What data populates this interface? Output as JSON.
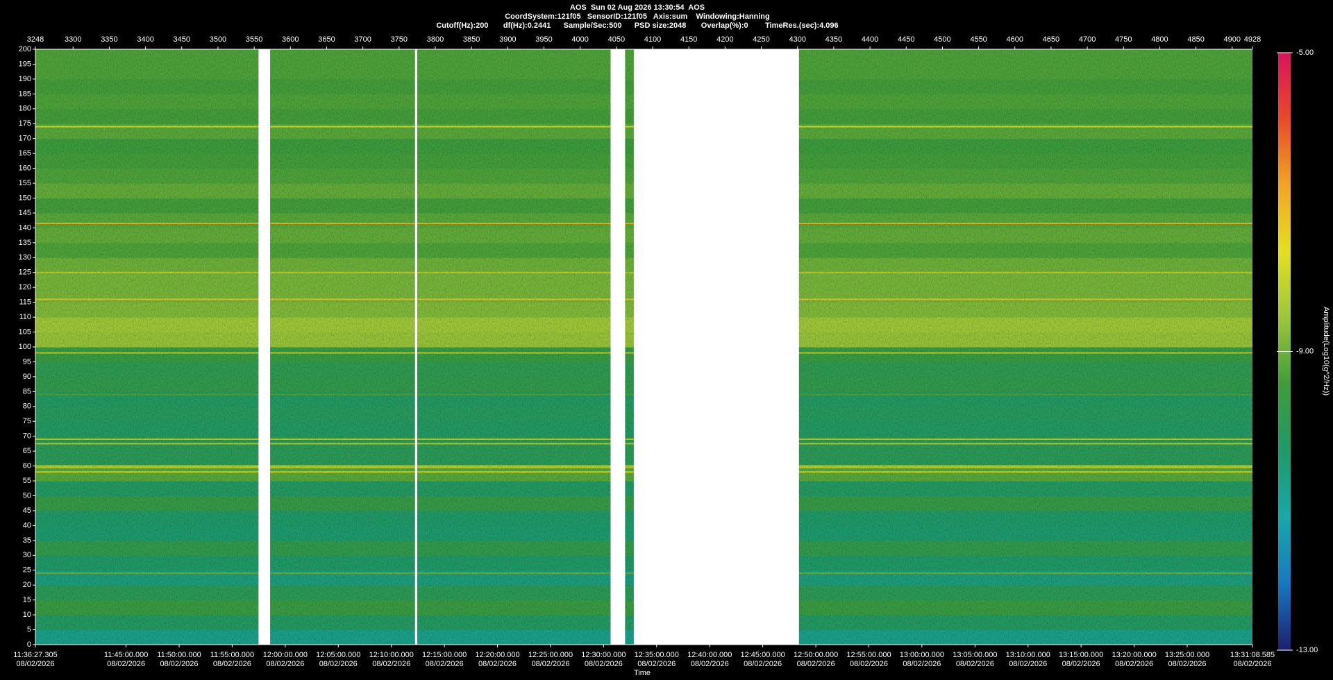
{
  "chart_data": {
    "type": "spectrogram",
    "title": "AOS  Sun 02 Aug 2026 13:30:54  AOS",
    "subtitle": "CoordSystem:121f05   SensorID:121f05   Axis:sum    Windowing:Hanning",
    "settings_line": "Cutoff(Hz):200       df(Hz):0.2441      Sample/Sec:500      PSD size:2048       Overlap(%):0        TimeRes.(sec):4.096",
    "xlabel": "Time",
    "colorbar_label": "Amplitude(Log10(g^2/Hz))",
    "xlim": [
      3248,
      4928
    ],
    "top_xticks": [
      3248,
      3300,
      3350,
      3400,
      3450,
      3500,
      3550,
      3600,
      3650,
      3700,
      3750,
      3800,
      3850,
      3900,
      3950,
      4000,
      4050,
      4100,
      4150,
      4200,
      4250,
      4300,
      4350,
      4400,
      4450,
      4500,
      4550,
      4600,
      4650,
      4700,
      4750,
      4800,
      4850,
      4900,
      4928
    ],
    "xticks": [
      {
        "value": 3248,
        "label": "11:36:27.305",
        "date": "08/02/2026"
      },
      {
        "value": 3373.2,
        "label": "11:45:00.000",
        "date": "08/02/2026"
      },
      {
        "value": 3446.4,
        "label": "11:50:00.000",
        "date": "08/02/2026"
      },
      {
        "value": 3519.6,
        "label": "11:55:00.000",
        "date": "08/02/2026"
      },
      {
        "value": 3592.9,
        "label": "12:00:00.000",
        "date": "08/02/2026"
      },
      {
        "value": 3666.1,
        "label": "12:05:00.000",
        "date": "08/02/2026"
      },
      {
        "value": 3739.4,
        "label": "12:10:00.000",
        "date": "08/02/2026"
      },
      {
        "value": 3812.6,
        "label": "12:15:00.000",
        "date": "08/02/2026"
      },
      {
        "value": 3885.8,
        "label": "12:20:00.000",
        "date": "08/02/2026"
      },
      {
        "value": 3959.1,
        "label": "12:25:00.000",
        "date": "08/02/2026"
      },
      {
        "value": 4032.3,
        "label": "12:30:00.000",
        "date": "08/02/2026"
      },
      {
        "value": 4105.5,
        "label": "12:35:00.000",
        "date": "08/02/2026"
      },
      {
        "value": 4178.8,
        "label": "12:40:00.000",
        "date": "08/02/2026"
      },
      {
        "value": 4252.0,
        "label": "12:45:00.000",
        "date": "08/02/2026"
      },
      {
        "value": 4325.3,
        "label": "12:50:00.000",
        "date": "08/02/2026"
      },
      {
        "value": 4398.5,
        "label": "12:55:00.000",
        "date": "08/02/2026"
      },
      {
        "value": 4471.7,
        "label": "13:00:00.000",
        "date": "08/02/2026"
      },
      {
        "value": 4545.0,
        "label": "13:05:00.000",
        "date": "08/02/2026"
      },
      {
        "value": 4618.2,
        "label": "13:10:00.000",
        "date": "08/02/2026"
      },
      {
        "value": 4691.4,
        "label": "13:15:00.000",
        "date": "08/02/2026"
      },
      {
        "value": 4764.7,
        "label": "13:20:00.000",
        "date": "08/02/2026"
      },
      {
        "value": 4837.9,
        "label": "13:25:00.000",
        "date": "08/02/2026"
      },
      {
        "value": 4928,
        "label": "13:31:08.585",
        "date": "08/02/2026"
      }
    ],
    "ylim": [
      0,
      200
    ],
    "yticks": [
      0,
      5,
      10,
      15,
      20,
      25,
      30,
      35,
      40,
      45,
      50,
      55,
      60,
      65,
      70,
      75,
      80,
      85,
      90,
      95,
      100,
      105,
      110,
      115,
      120,
      125,
      130,
      135,
      140,
      145,
      150,
      155,
      160,
      165,
      170,
      175,
      180,
      185,
      190,
      195,
      200
    ],
    "bins": [
      0,
      5,
      10,
      15,
      20,
      25,
      30,
      35,
      40,
      45,
      50,
      55,
      60,
      65,
      70,
      75,
      80,
      85,
      90,
      95,
      100,
      105,
      110,
      115,
      120,
      125,
      130,
      135,
      140,
      145,
      150,
      155,
      160,
      165,
      170,
      175,
      180,
      185,
      190,
      195,
      200
    ],
    "amplitude": [
      -10.8,
      -10.2,
      -9.6,
      -10.0,
      -10.6,
      -10.3,
      -9.8,
      -10.4,
      -10.3,
      -9.7,
      -10.2,
      -9.2,
      -10.0,
      -10.0,
      -10.2,
      -10.1,
      -10.2,
      -9.8,
      -9.9,
      -9.6,
      -8.6,
      -8.5,
      -8.8,
      -8.9,
      -8.9,
      -9.0,
      -9.3,
      -9.1,
      -9.2,
      -9.4,
      -9.1,
      -9.3,
      -9.4,
      -9.5,
      -9.2,
      -9.4,
      -9.3,
      -9.4,
      -9.3,
      -9.3
    ],
    "lines": {
      "frequencies": [
        24,
        58,
        59.5,
        60,
        67.5,
        69,
        84,
        98,
        116,
        125,
        141.5,
        174
      ],
      "values": [
        -9.0,
        -8.0,
        -8.2,
        -8.0,
        -8.2,
        -8.3,
        -9.3,
        -8.2,
        -7.2,
        -8.2,
        -7.0,
        -7.8
      ]
    },
    "gaps": [
      [
        3556,
        3572
      ],
      [
        3772,
        3775
      ],
      [
        4042,
        4062
      ],
      [
        4074,
        4302
      ]
    ],
    "clim": [
      -13,
      -5
    ],
    "colorbar_ticks": [
      {
        "value": -13,
        "label": "-13.00"
      },
      {
        "value": -9,
        "label": "-9.00"
      },
      {
        "value": -5,
        "label": "-5.00"
      }
    ],
    "colormap": [
      "#1c1f6e",
      "#1877c2",
      "#17a8a8",
      "#1f9a6a",
      "#3f9c3a",
      "#9cc63a",
      "#e3e020",
      "#f3a524",
      "#e84a2a",
      "#d8145c"
    ]
  }
}
